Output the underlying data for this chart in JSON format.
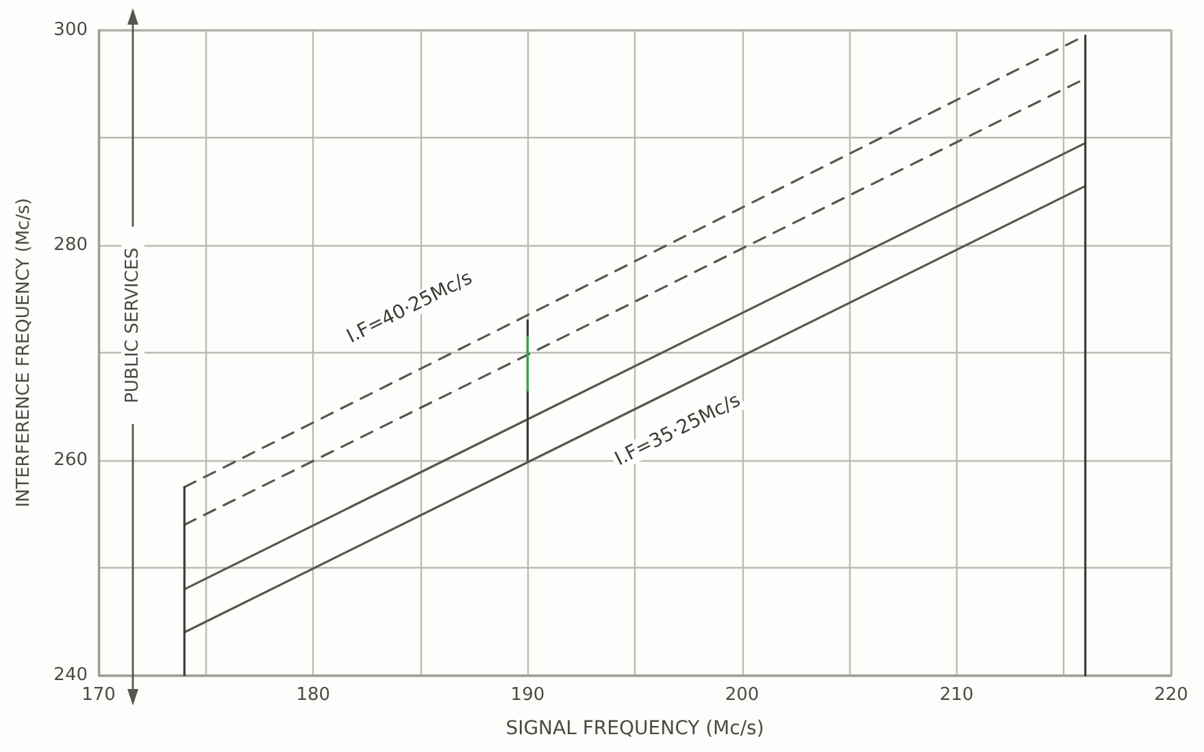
{
  "chart_data": {
    "type": "line",
    "xlabel": "SIGNAL FREQUENCY (Mc/s)",
    "ylabel": "INTERFERENCE FREQUENCY (Mc/s)",
    "xlim": [
      170,
      220
    ],
    "xticks": [
      170,
      {
        "value": 175,
        "label": null
      },
      180,
      {
        "value": 185,
        "label": null
      },
      190,
      {
        "value": 195,
        "label": null
      },
      200,
      {
        "value": 205,
        "label": null
      },
      210,
      {
        "value": 215,
        "label": null
      },
      220
    ],
    "ylim": [
      240,
      300
    ],
    "yticks": [
      240,
      {
        "value": 250,
        "label": null
      },
      260,
      {
        "value": 270,
        "label": null
      },
      280,
      {
        "value": 290,
        "label": null
      },
      300
    ],
    "grid": true,
    "marker": "none",
    "series": [
      {
        "line_style": "dashed",
        "color": "#55584f",
        "x": [
          174,
          216
        ],
        "values": [
          257.5,
          299.5
        ]
      },
      {
        "line_style": "dashed",
        "color": "#55584f",
        "x": [
          174,
          216
        ],
        "values": [
          254,
          295.5
        ]
      },
      {
        "line_style": "solid",
        "color": "#55584f",
        "x": [
          174,
          216
        ],
        "values": [
          248,
          289.5
        ]
      },
      {
        "line_style": "solid",
        "color": "#55584f",
        "x": [
          174,
          216
        ],
        "values": [
          244,
          285.5
        ]
      },
      {
        "line_style": "solid",
        "color": "#3a3c36",
        "x": [
          174,
          174
        ],
        "values": [
          240,
          257.5
        ]
      },
      {
        "line_style": "solid",
        "color": "#3a3c36",
        "x": [
          216,
          216
        ],
        "values": [
          240,
          299.5
        ]
      },
      {
        "line_style": "solid",
        "color": "#3a3c36",
        "x": [
          190,
          190
        ],
        "values": [
          260,
          273
        ]
      },
      {
        "line_style": "solid",
        "color": "#2fa84a",
        "x": [
          190,
          190
        ],
        "values": [
          266.5,
          271.5
        ]
      }
    ],
    "annotations": [
      "I.F=40·25Mc/s",
      "I.F=35·25Mc/s",
      "PUBLIC SERVICES"
    ]
  }
}
